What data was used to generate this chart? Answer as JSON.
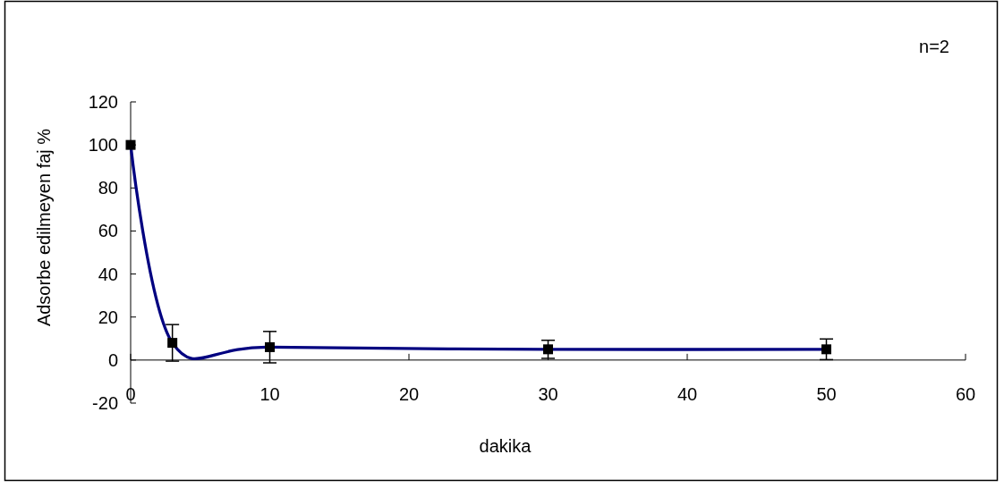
{
  "chart_data": {
    "type": "line",
    "xlabel": "dakika",
    "ylabel": "Adsorbe edilmeyen faj %",
    "annotations": [
      "n=2"
    ],
    "x": [
      0,
      3,
      10,
      30,
      50
    ],
    "series": [
      {
        "color": "#000080",
        "values": [
          100,
          8,
          6,
          5,
          5
        ],
        "errors": [
          null,
          8.5,
          7.3,
          4.2,
          4.8
        ]
      }
    ],
    "xlim": [
      0,
      60
    ],
    "xticks": [
      0,
      10,
      20,
      30,
      40,
      50,
      60
    ],
    "ylim": [
      -20,
      120
    ],
    "yticks": [
      -20,
      0,
      20,
      40,
      60,
      80,
      100,
      120
    ],
    "marker": "square",
    "line_style": "solid"
  }
}
